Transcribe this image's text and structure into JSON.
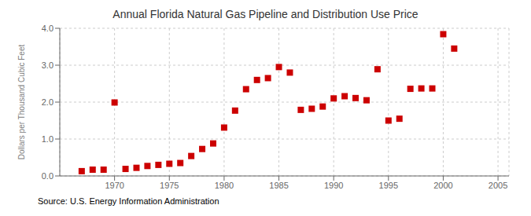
{
  "chart_data": {
    "type": "scatter",
    "title": "Annual Florida Natural Gas Pipeline and Distribution Use Price",
    "ylabel": "Dollars per Thousand Cubic Feet",
    "annotations": [
      "Source: U.S. Energy Information Administration"
    ],
    "x": [
      1967,
      1968,
      1969,
      1970,
      1971,
      1972,
      1973,
      1974,
      1975,
      1976,
      1977,
      1978,
      1979,
      1980,
      1981,
      1982,
      1983,
      1984,
      1985,
      1986,
      1987,
      1988,
      1989,
      1990,
      1991,
      1992,
      1993,
      1994,
      1995,
      1996,
      1997,
      1998,
      1999,
      2000,
      2001
    ],
    "values": [
      0.13,
      0.17,
      0.17,
      1.99,
      0.19,
      0.22,
      0.27,
      0.3,
      0.33,
      0.35,
      0.54,
      0.73,
      0.88,
      1.31,
      1.77,
      2.35,
      2.6,
      2.65,
      2.95,
      2.8,
      1.79,
      1.82,
      1.88,
      2.1,
      2.16,
      2.11,
      2.05,
      2.89,
      1.5,
      1.55,
      2.36,
      2.37,
      2.37,
      3.84,
      3.45
    ],
    "color": "#cc0000",
    "marker": "square",
    "grid": true,
    "xlim": [
      1965,
      2006
    ],
    "ylim": [
      0.0,
      4.0
    ],
    "xticks": [
      1970,
      1975,
      1980,
      1985,
      1990,
      1995,
      2000,
      2005
    ],
    "yticks": [
      {
        "value": 0.0,
        "label": "0.0"
      },
      {
        "value": 1.0,
        "label": "1.0"
      },
      {
        "value": 2.0,
        "label": "2.0"
      },
      {
        "value": 3.0,
        "label": "3.0"
      },
      {
        "value": 4.0,
        "label": "4.0"
      }
    ]
  }
}
